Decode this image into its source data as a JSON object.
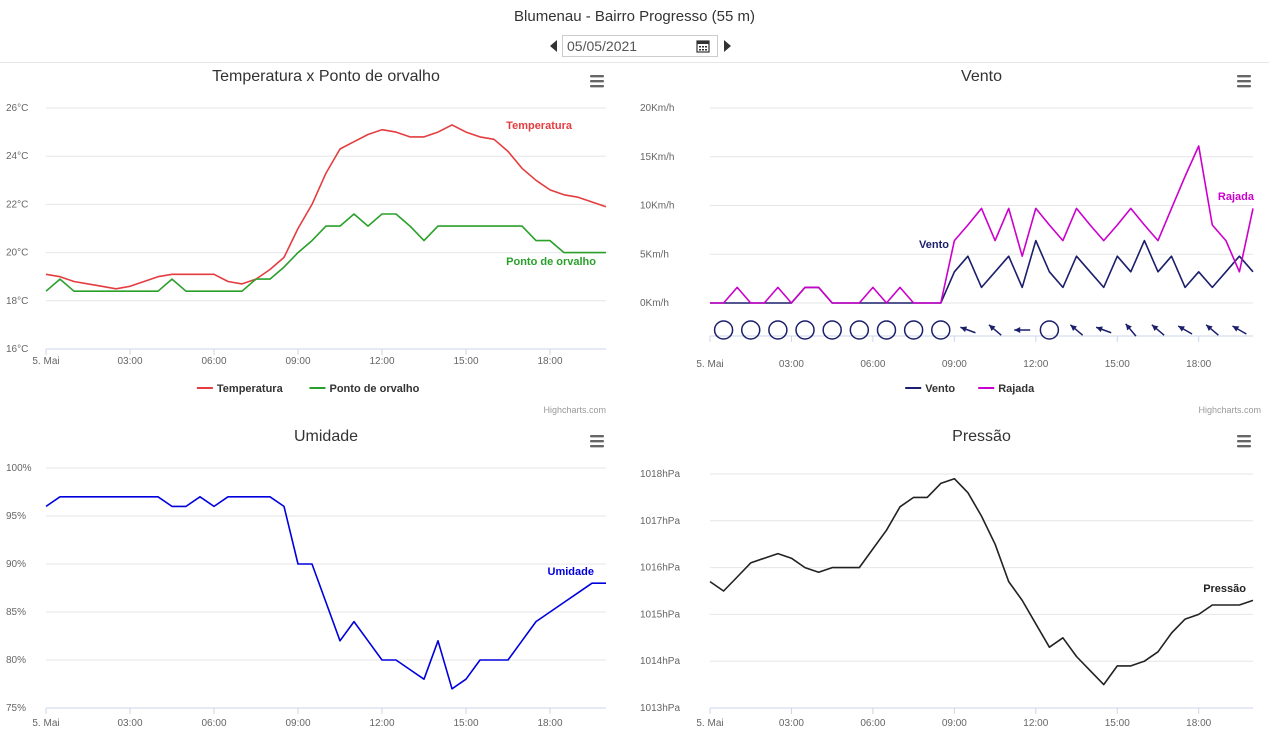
{
  "header": {
    "title": "Blumenau - Bairro Progresso (55 m)",
    "date": "05/05/2021"
  },
  "credit": "Highcharts.com",
  "x_labels": [
    "5. Mai",
    "03:00",
    "06:00",
    "09:00",
    "12:00",
    "15:00",
    "18:00"
  ],
  "chart_data": [
    {
      "id": "temp",
      "type": "line",
      "title": "Temperatura x Ponto de orvalho",
      "xlim": [
        0,
        20
      ],
      "ylim": [
        16,
        26
      ],
      "y_ticks": [
        16,
        18,
        20,
        22,
        24,
        26
      ],
      "y_tick_labels": [
        "16°C",
        "18°C",
        "20°C",
        "22°C",
        "24°C",
        "26°C"
      ],
      "grid": true,
      "legend": "bottom",
      "series": [
        {
          "name": "Temperatura",
          "color": "#e43d40",
          "x": [
            0,
            0.5,
            1,
            1.5,
            2,
            2.5,
            3,
            3.5,
            4,
            4.5,
            5,
            5.5,
            6,
            6.5,
            7,
            7.5,
            8,
            8.5,
            9,
            9.5,
            10,
            10.5,
            11,
            11.5,
            12,
            12.5,
            13,
            13.5,
            14,
            14.5,
            15,
            15.5,
            16,
            16.5,
            17,
            17.5,
            18,
            18.5,
            19,
            19.5,
            20
          ],
          "y": [
            19.1,
            19.0,
            18.8,
            18.7,
            18.6,
            18.5,
            18.6,
            18.8,
            19.0,
            19.1,
            19.1,
            19.1,
            19.1,
            18.8,
            18.7,
            18.9,
            19.3,
            19.8,
            21.0,
            22.0,
            23.3,
            24.3,
            24.6,
            24.9,
            25.1,
            25.0,
            24.8,
            24.8,
            25.0,
            25.3,
            25.0,
            24.8,
            24.7,
            24.2,
            23.5,
            23.0,
            22.6,
            22.4,
            22.3,
            22.1,
            21.9
          ]
        },
        {
          "name": "Ponto de orvalho",
          "color": "#2aa02b",
          "x": [
            0,
            0.5,
            1,
            1.5,
            2,
            2.5,
            3,
            3.5,
            4,
            4.5,
            5,
            5.5,
            6,
            6.5,
            7,
            7.5,
            8,
            8.5,
            9,
            9.5,
            10,
            10.5,
            11,
            11.5,
            12,
            12.5,
            13,
            13.5,
            14,
            14.5,
            15,
            15.5,
            16,
            16.5,
            17,
            17.5,
            18,
            18.5,
            19,
            19.5,
            20
          ],
          "y": [
            18.4,
            18.9,
            18.4,
            18.4,
            18.4,
            18.4,
            18.4,
            18.4,
            18.4,
            18.9,
            18.4,
            18.4,
            18.4,
            18.4,
            18.4,
            18.9,
            18.9,
            19.4,
            20.0,
            20.5,
            21.1,
            21.1,
            21.6,
            21.1,
            21.6,
            21.6,
            21.1,
            20.5,
            21.1,
            21.1,
            21.1,
            21.1,
            21.1,
            21.1,
            21.1,
            20.5,
            20.5,
            20.0,
            20.0,
            20.0,
            20.0
          ]
        }
      ]
    },
    {
      "id": "vento",
      "type": "line",
      "title": "Vento",
      "xlim": [
        0,
        20
      ],
      "ylim": [
        0,
        20
      ],
      "y_ticks": [
        0,
        5,
        10,
        15,
        20
      ],
      "y_tick_labels": [
        "0Km/h",
        "5Km/h",
        "10Km/h",
        "15Km/h",
        "20Km/h"
      ],
      "grid": true,
      "legend": "bottom",
      "series": [
        {
          "name": "Vento",
          "color": "#1b1f6b",
          "x": [
            0,
            1,
            2,
            3,
            3.5,
            4,
            4.5,
            5,
            6,
            7,
            8,
            8.5,
            9,
            9.5,
            10,
            10.5,
            11,
            11.5,
            12,
            12.5,
            13,
            13.5,
            14,
            14.5,
            15,
            15.5,
            16,
            16.5,
            17,
            17.5,
            18,
            18.5,
            19,
            19.5,
            20
          ],
          "y": [
            0,
            0,
            0,
            0,
            1.6,
            1.6,
            0,
            0,
            0,
            0,
            0,
            0,
            3.2,
            4.8,
            1.6,
            3.2,
            4.8,
            1.6,
            6.4,
            3.2,
            1.6,
            4.8,
            3.2,
            1.6,
            4.8,
            3.2,
            6.4,
            3.2,
            4.8,
            1.6,
            3.2,
            1.6,
            3.2,
            4.8,
            3.2
          ]
        },
        {
          "name": "Rajada",
          "color": "#cc00cc",
          "x": [
            0,
            0.5,
            1,
            1.5,
            2,
            2.5,
            3,
            3.5,
            4,
            4.5,
            5,
            5.5,
            6,
            6.5,
            7,
            7.5,
            8,
            8.5,
            9,
            9.5,
            10,
            10.5,
            11,
            11.5,
            12,
            12.5,
            13,
            13.5,
            14,
            14.5,
            15,
            15.5,
            16,
            16.5,
            17,
            17.5,
            18,
            18.5,
            19,
            19.5,
            20
          ],
          "y": [
            0,
            0,
            1.6,
            0,
            0,
            1.6,
            0,
            1.6,
            1.6,
            0,
            0,
            0,
            1.6,
            0,
            1.6,
            0,
            0,
            0,
            6.4,
            8.0,
            9.7,
            6.4,
            9.7,
            4.8,
            9.7,
            8.0,
            6.4,
            9.7,
            8.0,
            6.4,
            8.0,
            9.7,
            8.0,
            6.4,
            9.7,
            13.0,
            16.1,
            8.0,
            6.4,
            3.2,
            9.7
          ]
        }
      ]
    },
    {
      "id": "umidade",
      "type": "line",
      "title": "Umidade",
      "xlim": [
        0,
        20
      ],
      "ylim": [
        75,
        100
      ],
      "y_ticks": [
        75,
        80,
        85,
        90,
        95,
        100
      ],
      "y_tick_labels": [
        "75%",
        "80%",
        "85%",
        "90%",
        "95%",
        "100%"
      ],
      "grid": true,
      "legend": "none",
      "series": [
        {
          "name": "Umidade",
          "color": "#0000dd",
          "x": [
            0,
            0.5,
            1,
            1.5,
            2,
            2.5,
            3,
            3.5,
            4,
            4.5,
            5,
            5.5,
            6,
            6.5,
            7,
            7.5,
            8,
            8.5,
            9,
            9.5,
            10,
            10.5,
            11,
            11.5,
            12,
            12.5,
            13,
            13.5,
            14,
            14.5,
            15,
            15.5,
            16,
            16.5,
            17,
            17.5,
            18,
            18.5,
            19,
            19.5,
            20
          ],
          "y": [
            96,
            97,
            97,
            97,
            97,
            97,
            97,
            97,
            97,
            96,
            96,
            97,
            96,
            97,
            97,
            97,
            97,
            96,
            90,
            90,
            86,
            82,
            84,
            82,
            80,
            80,
            79,
            78,
            82,
            77,
            78,
            80,
            80,
            80,
            82,
            84,
            85,
            86,
            87,
            88,
            88
          ]
        }
      ]
    },
    {
      "id": "pressao",
      "type": "line",
      "title": "Pressão",
      "xlim": [
        0,
        20
      ],
      "ylim": [
        1013,
        1018
      ],
      "y_ticks": [
        1013,
        1014,
        1015,
        1016,
        1017,
        1018
      ],
      "y_tick_labels": [
        "1013hPa",
        "1014hPa",
        "1015hPa",
        "1016hPa",
        "1017hPa",
        "1018hPa"
      ],
      "grid": true,
      "legend": "none",
      "series": [
        {
          "name": "Pressão",
          "color": "#222222",
          "x": [
            0,
            0.5,
            1,
            1.5,
            2,
            2.5,
            3,
            3.5,
            4,
            4.5,
            5,
            5.5,
            6,
            6.5,
            7,
            7.5,
            8,
            8.5,
            9,
            9.5,
            10,
            10.5,
            11,
            11.5,
            12,
            12.5,
            13,
            13.5,
            14,
            14.5,
            15,
            15.5,
            16,
            16.5,
            17,
            17.5,
            18,
            18.5,
            19,
            19.5,
            20
          ],
          "y": [
            1015.7,
            1015.5,
            1015.8,
            1016.1,
            1016.2,
            1016.3,
            1016.2,
            1016.0,
            1015.9,
            1016.0,
            1016.0,
            1016.0,
            1016.4,
            1016.8,
            1017.3,
            1017.5,
            1017.5,
            1017.8,
            1017.9,
            1017.6,
            1017.1,
            1016.5,
            1015.7,
            1015.3,
            1014.8,
            1014.3,
            1014.5,
            1014.1,
            1013.8,
            1013.5,
            1013.9,
            1013.9,
            1014.0,
            1014.2,
            1014.6,
            1014.9,
            1015.0,
            1015.2,
            1015.2,
            1015.2,
            1015.3
          ]
        }
      ]
    }
  ],
  "wind_direction": {
    "symbols": [
      "calm",
      "calm",
      "calm",
      "calm",
      "calm",
      "calm",
      "calm",
      "calm",
      "calm",
      "arrow",
      "arrow",
      "arrow",
      "calm",
      "arrow",
      "arrow",
      "arrow",
      "arrow",
      "arrow",
      "arrow",
      "arrow"
    ],
    "direction_deg": [
      0,
      0,
      0,
      0,
      0,
      0,
      0,
      0,
      0,
      110,
      130,
      90,
      0,
      130,
      110,
      140,
      130,
      120,
      130,
      120
    ]
  },
  "colors": {
    "grid": "#e6e6e6",
    "axis": "#ccd6eb",
    "menu": "#666666",
    "wind_symbol": "#1b1f6b"
  }
}
